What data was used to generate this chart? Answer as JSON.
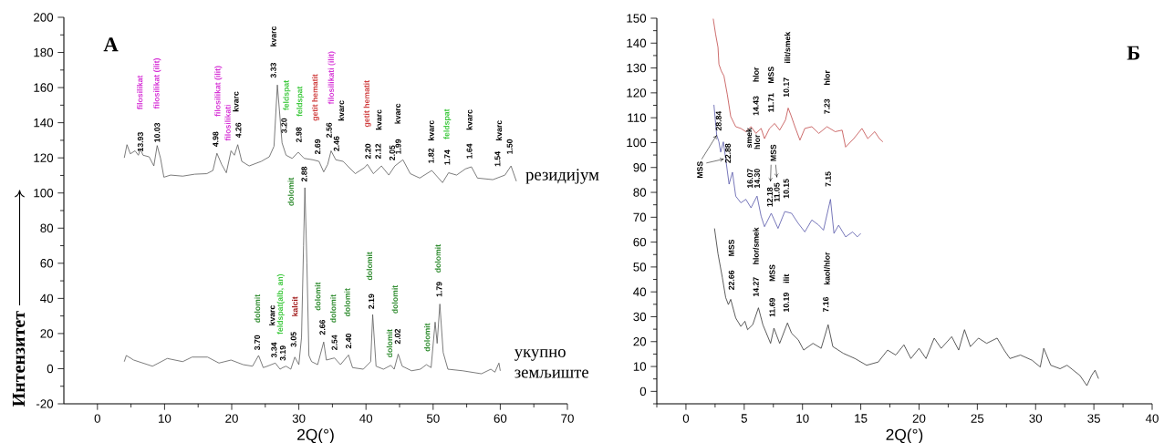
{
  "chart_data": [
    {
      "type": "line",
      "xlabel": "2Q(°)",
      "ylabel": "Интензитет",
      "xlim": [
        -5,
        70
      ],
      "ylim": [
        -20,
        200
      ],
      "xticks": [
        0,
        {
          "value": 5,
          "label": null
        },
        10,
        {
          "value": 15,
          "label": null
        },
        20,
        {
          "value": 25,
          "label": null
        },
        30,
        {
          "value": 35,
          "label": null
        },
        40,
        {
          "value": 45,
          "label": null
        },
        50,
        {
          "value": 55,
          "label": null
        },
        60,
        {
          "value": 65,
          "label": null
        },
        70
      ],
      "yticks": [
        -20,
        {
          "value": -10,
          "label": null
        },
        0,
        {
          "value": 10,
          "label": null
        },
        20,
        {
          "value": 30,
          "label": null
        },
        40,
        {
          "value": 50,
          "label": null
        },
        60,
        {
          "value": 70,
          "label": null
        },
        80,
        {
          "value": 90,
          "label": null
        },
        100,
        {
          "value": 110,
          "label": null
        },
        120,
        {
          "value": 130,
          "label": null
        },
        140,
        {
          "value": 150,
          "label": null
        },
        160,
        {
          "value": 170,
          "label": null
        },
        180,
        {
          "value": 190,
          "label": null
        },
        200
      ],
      "marker": "none",
      "series": [
        {
          "name": "резидијум",
          "color": "#5a5a5a",
          "x": [
            4.0,
            4.4,
            4.9,
            5.6,
            6.1,
            6.4,
            6.8,
            7.7,
            8.4,
            8.9,
            9.4,
            9.9,
            10.9,
            12.7,
            14.5,
            16.3,
            17.2,
            17.8,
            18.5,
            19.2,
            19.9,
            20.4,
            20.9,
            21.5,
            22.6,
            24.4,
            25.6,
            26.3,
            26.8,
            27.5,
            28.1,
            29.0,
            29.9,
            30.8,
            32.1,
            33.0,
            33.7,
            34.3,
            34.8,
            35.5,
            36.6,
            38.4,
            39.8,
            40.2,
            41.1,
            42.3,
            43.4,
            44.3,
            45.5,
            46.6,
            48.0,
            49.8,
            51.4,
            52.3,
            53.5,
            54.8,
            55.7,
            56.6,
            58.9,
            60.7,
            61.6,
            62.4
          ],
          "values": [
            120,
            127.5,
            122.3,
            124,
            121.5,
            125,
            121.5,
            120.6,
            115.4,
            127,
            119.7,
            109,
            110.2,
            109.6,
            110.7,
            111,
            112.8,
            122.6,
            116.3,
            111.5,
            124,
            121.5,
            127.5,
            118,
            115.4,
            118,
            120.6,
            126.6,
            161.5,
            128.5,
            121.5,
            119.7,
            123.2,
            119.7,
            118.9,
            118,
            112,
            116.3,
            124,
            118.9,
            118,
            111,
            114.5,
            116.3,
            111,
            115.4,
            110.2,
            115.4,
            118.9,
            111,
            108.5,
            112.8,
            105.9,
            111.5,
            110.2,
            113.7,
            114.9,
            108.5,
            107.6,
            110.2,
            115.4,
            106.7
          ]
        },
        {
          "name": "укупно земљиште",
          "color": "#5a5a5a",
          "x": [
            4.0,
            4.3,
            5.4,
            8.2,
            10.4,
            12.7,
            14.1,
            16.4,
            18.1,
            19.9,
            21.7,
            23.1,
            24.0,
            24.7,
            25.3,
            26.5,
            27.2,
            27.6,
            28.1,
            28.8,
            29.4,
            30.0,
            30.4,
            30.7,
            30.9,
            31.2,
            31.5,
            31.9,
            32.8,
            33.7,
            34.1,
            35.3,
            36.2,
            37.4,
            38.0,
            39.6,
            40.7,
            41.0,
            41.5,
            42.6,
            43.7,
            44.2,
            44.8,
            45.4,
            46.8,
            48.1,
            49.0,
            49.7,
            50.3,
            50.6,
            51.0,
            51.5,
            52.2,
            54.4,
            57.2,
            58.6,
            59.2,
            59.8,
            60.0
          ],
          "values": [
            4.0,
            7.5,
            4.9,
            1.4,
            5.8,
            4.0,
            6.6,
            6.6,
            3.2,
            4.9,
            2.3,
            1.4,
            7.5,
            0.6,
            1.4,
            3.2,
            -0.3,
            0.6,
            1.4,
            -0.3,
            6.6,
            2.3,
            17.8,
            70,
            103,
            60,
            7.5,
            4.0,
            2.3,
            15.2,
            4.9,
            6.1,
            2.3,
            7.8,
            0.6,
            -0.3,
            4.0,
            30.8,
            1.4,
            -0.3,
            1.9,
            -0.3,
            8.3,
            1.4,
            -1.2,
            -0.3,
            2.3,
            0.6,
            26.5,
            14.4,
            36.8,
            9.2,
            -0.3,
            -1.2,
            -2.9,
            -0.3,
            -2.0,
            3.2,
            -1.2
          ]
        }
      ],
      "annotations": [
        "A",
        "13.93",
        "filosilikat",
        "10.03",
        "filosilikat (ilit)",
        "4.98",
        "filosilikat (ilit)",
        "filosilikati",
        "4.26",
        "kvarc",
        "3.33",
        "kvarc",
        "3.20",
        "feldspat",
        "2.98",
        "feldspat",
        "2.69",
        "getit  hematit",
        "2.56",
        "filosilikati (ilit)",
        "2.46",
        "kvarc",
        "getit  hematit",
        "2.20",
        "2.12",
        "kvarc",
        "2.05",
        "1.99",
        "kvarc",
        "1.82",
        "kvarc",
        "1.74",
        "feldspat",
        "1.64",
        "kvarc",
        "1.54",
        "kvarc",
        "1.50",
        "3.70",
        "dolomit",
        "3.34",
        "kvarc",
        "3.19",
        "feldspat(alb, an)",
        "3.05",
        "kalcit",
        "dolomit",
        "2.88",
        "2.66",
        "dolomit",
        "2.54",
        "dolomit",
        "2.40",
        "dolomit",
        "2.19",
        "dolomit",
        "dolomit",
        "2.02",
        "dolomit",
        "dolomit",
        "1.79",
        "dolomit"
      ]
    },
    {
      "type": "line",
      "xlabel": "2Q(°)",
      "xlim": [
        -2.5,
        40
      ],
      "ylim": [
        -5,
        150
      ],
      "xticks": [
        {
          "value": -2.5,
          "label": null
        },
        0,
        {
          "value": 2.5,
          "label": null
        },
        5,
        {
          "value": 7.5,
          "label": null
        },
        10,
        {
          "value": 12.5,
          "label": null
        },
        15,
        {
          "value": 17.5,
          "label": null
        },
        20,
        {
          "value": 22.5,
          "label": null
        },
        25,
        {
          "value": 27.5,
          "label": null
        },
        30,
        {
          "value": 32.5,
          "label": null
        },
        35,
        {
          "value": 37.5,
          "label": null
        },
        40
      ],
      "yticks": [
        {
          "value": -5,
          "label": null
        },
        0,
        {
          "value": 5,
          "label": null
        },
        10,
        {
          "value": 15,
          "label": null
        },
        20,
        {
          "value": 25,
          "label": null
        },
        30,
        {
          "value": 35,
          "label": null
        },
        40,
        {
          "value": 45,
          "label": null
        },
        50,
        {
          "value": 55,
          "label": null
        },
        60,
        {
          "value": 65,
          "label": null
        },
        70,
        {
          "value": 75,
          "label": null
        },
        80,
        {
          "value": 85,
          "label": null
        },
        90,
        {
          "value": 95,
          "label": null
        },
        100,
        {
          "value": 105,
          "label": null
        },
        110,
        {
          "value": 115,
          "label": null
        },
        120,
        {
          "value": 125,
          "label": null
        },
        130,
        {
          "value": 135,
          "label": null
        },
        140,
        {
          "value": 145,
          "label": null
        },
        150
      ],
      "marker": "none",
      "series": [
        {
          "color": "#c04848",
          "x": [
            2.34,
            2.54,
            2.75,
            2.83,
            3.03,
            3.26,
            3.55,
            3.84,
            4.27,
            4.71,
            5.14,
            5.58,
            6.01,
            6.45,
            6.74,
            7.17,
            7.61,
            8.04,
            8.54,
            8.77,
            9.0,
            9.35,
            9.78,
            10.2,
            10.8,
            11.4,
            12.1,
            12.8,
            13.4,
            13.7,
            14.4,
            15.1,
            15.6,
            16.2,
            16.6,
            16.9
          ],
          "values": [
            149.8,
            143.7,
            138.3,
            131.5,
            128.8,
            126.8,
            119.3,
            110.5,
            106.4,
            105.7,
            104.4,
            106.4,
            103.7,
            105.7,
            101.6,
            105.7,
            107.7,
            105,
            109.1,
            113.9,
            111.1,
            106.4,
            101,
            105.7,
            106.4,
            103.7,
            106.4,
            104.4,
            105,
            98.2,
            101.6,
            105.7,
            101.6,
            104.4,
            101.6,
            100.3
          ]
        },
        {
          "color": "#5656a8",
          "x": [
            2.4,
            2.64,
            2.83,
            2.98,
            3.21,
            3.41,
            3.7,
            3.99,
            4.27,
            4.71,
            5.14,
            5.58,
            6.1,
            6.45,
            6.74,
            7.32,
            7.9,
            8.48,
            9.06,
            9.64,
            10.2,
            10.8,
            11.4,
            11.8,
            12.4,
            12.7,
            13.1,
            13.7,
            14.3,
            14.7,
            15.0
          ],
          "values": [
            115.2,
            103,
            100.3,
            96.2,
            100.3,
            93.5,
            83.3,
            88.1,
            78.5,
            75.8,
            77.2,
            73.8,
            78.5,
            70.4,
            66.2,
            71.6,
            65.5,
            72.3,
            71.6,
            67.5,
            64.1,
            68.9,
            66.8,
            64.8,
            77.2,
            63.5,
            66.8,
            62.1,
            64.1,
            62.1,
            63.5
          ]
        },
        {
          "color": "#333333",
          "x": [
            2.45,
            2.75,
            3.12,
            3.41,
            3.64,
            3.84,
            4.27,
            4.71,
            5.06,
            5.29,
            5.73,
            6.22,
            6.6,
            7.26,
            7.55,
            8.04,
            8.71,
            9.06,
            9.64,
            10.1,
            10.9,
            11.6,
            12.2,
            12.6,
            13.5,
            14.5,
            15.5,
            16.5,
            17.3,
            18.0,
            18.7,
            19.3,
            20.0,
            20.6,
            21.3,
            21.9,
            22.8,
            23.4,
            23.9,
            24.4,
            25.1,
            25.8,
            26.7,
            27.3,
            27.8,
            28.7,
            29.7,
            30.4,
            30.7,
            31.3,
            32.1,
            32.7,
            33.8,
            34.4,
            34.8,
            35.1,
            35.4
          ],
          "values": [
            65.5,
            55.3,
            45.8,
            37.7,
            34.9,
            37,
            29.5,
            26.1,
            28.2,
            24.8,
            26.8,
            33.6,
            26.8,
            19.3,
            25.4,
            19.3,
            27.5,
            23.4,
            20.7,
            16.6,
            19.3,
            17.3,
            26.8,
            18,
            15.3,
            13.2,
            10.5,
            11.8,
            16.6,
            14.6,
            18.7,
            13.2,
            17.3,
            13.2,
            21.4,
            17.3,
            22,
            16.6,
            24.8,
            18,
            21.4,
            19.3,
            21.4,
            16.6,
            13.2,
            14.6,
            12.5,
            9.8,
            17.3,
            10.5,
            9.1,
            10.5,
            6.4,
            2.3,
            6.4,
            8.5,
            5.1
          ]
        }
      ],
      "annotations": [
        "Б",
        "14.43",
        "hlor",
        "11.71",
        "MSS",
        "10.17",
        "ilit/smek",
        "7.23",
        "hlor",
        {
          "text": "MSS",
          "x": 2.64,
          "y": 103
        },
        "28.84",
        "22.88",
        "16.07",
        "smek",
        "14.30",
        "hlor",
        "12.18",
        "11.05",
        "MSS",
        "10.15",
        "7.15",
        "22.66",
        "MSS",
        "14.27",
        "hlor/smek",
        "11.69",
        "MSS",
        "10.19",
        "ilit",
        "7.16",
        "kaol/hlor"
      ]
    }
  ]
}
